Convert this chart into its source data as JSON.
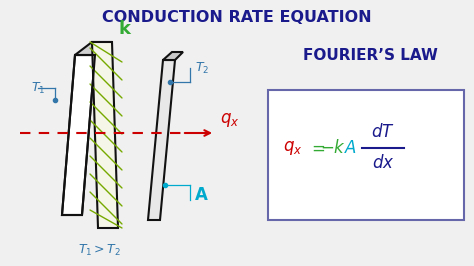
{
  "title": "CONDUCTION RATE EQUATION",
  "title_color": "#1a1a8c",
  "title_fontsize": 11.5,
  "bg_color": "#f0f0f0",
  "fouriers_law_text": "FOURIER’S LAW",
  "fouriers_law_color": "#1a1a8c",
  "fouriers_law_fontsize": 11,
  "equation_box_color": "#6666aa",
  "qx_label_color": "#cc0000",
  "k_label_color": "#33aa33",
  "A_label_color": "#00aacc",
  "frac_color": "#1a1a8c",
  "T1_label_color": "#3377aa",
  "T2_label_color": "#3377aa",
  "plate_color": "#111111",
  "arrow_color": "#cc0000",
  "dashed_color": "#cc0000",
  "hatch_line_color": "#77aa00"
}
